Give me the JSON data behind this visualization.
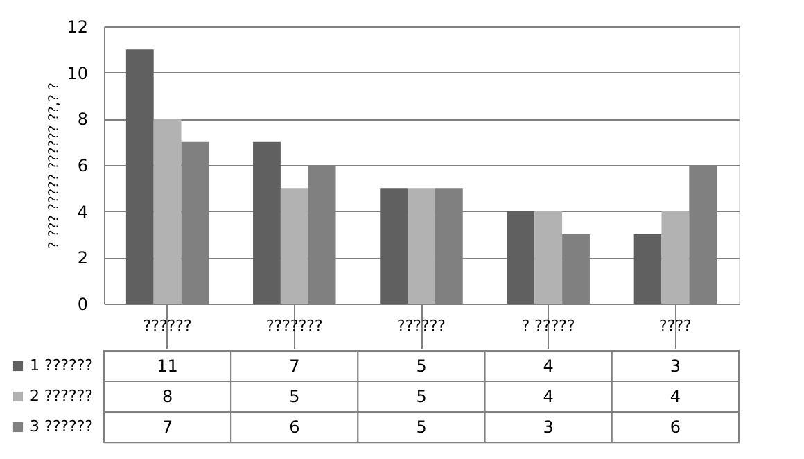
{
  "chart_data": {
    "type": "bar",
    "ylabel": "? ??? ????? ?????? ??,? ?",
    "categories": [
      "??????",
      "???????",
      "??????",
      "? ?????",
      "????"
    ],
    "series": [
      {
        "name": "1 ??????",
        "color": "#606060",
        "values": [
          11,
          7,
          5,
          4,
          3
        ]
      },
      {
        "name": "2 ??????",
        "color": "#b2b2b2",
        "values": [
          8,
          5,
          5,
          4,
          4
        ]
      },
      {
        "name": "3 ??????",
        "color": "#808080",
        "values": [
          7,
          6,
          5,
          3,
          6
        ]
      }
    ],
    "ylim": [
      0,
      12
    ],
    "yticks": [
      0,
      2,
      4,
      6,
      8,
      10,
      12
    ],
    "grid": "y",
    "data_labels": true,
    "legend": "bottom"
  }
}
